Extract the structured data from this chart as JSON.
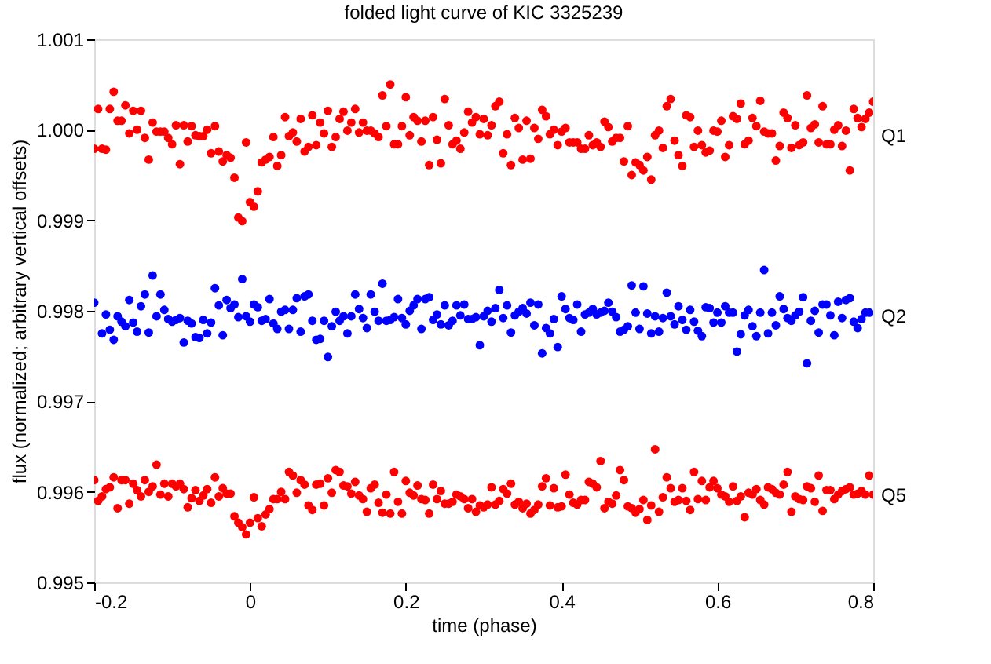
{
  "chart_data": {
    "type": "scatter",
    "title": "folded light curve of KIC 3325239",
    "xlabel": "time (phase)",
    "ylabel": "flux (normalized; arbitrary vertical offsets)",
    "xlim": [
      -0.2,
      0.8
    ],
    "xticks": [
      -0.2,
      0,
      0.2,
      0.4,
      0.6,
      0.8
    ],
    "ylim": [
      0.995,
      1.001
    ],
    "yticks": [
      0.995,
      0.996,
      0.997,
      0.998,
      0.999,
      {
        "value": 1.0,
        "label": "1.000"
      },
      1.001
    ],
    "grid": false,
    "legend": false,
    "marker": "circle",
    "x": [
      -0.2,
      -0.195,
      -0.19,
      -0.185,
      -0.18,
      -0.175,
      -0.17,
      -0.165,
      -0.16,
      -0.155,
      -0.15,
      -0.145,
      -0.14,
      -0.135,
      -0.13,
      -0.125,
      -0.12,
      -0.115,
      -0.11,
      -0.105,
      -0.1,
      -0.095,
      -0.09,
      -0.085,
      -0.08,
      -0.075,
      -0.07,
      -0.065,
      -0.06,
      -0.055,
      -0.05,
      -0.045,
      -0.04,
      -0.035,
      -0.03,
      -0.025,
      -0.02,
      -0.015,
      -0.01,
      -0.005,
      0,
      0.005,
      0.01,
      0.015,
      0.02,
      0.025,
      0.03,
      0.035,
      0.04,
      0.045,
      0.05,
      0.055,
      0.06,
      0.065,
      0.07,
      0.075,
      0.08,
      0.085,
      0.09,
      0.095,
      0.1,
      0.105,
      0.11,
      0.115,
      0.12,
      0.125,
      0.13,
      0.135,
      0.14,
      0.145,
      0.15,
      0.155,
      0.16,
      0.165,
      0.17,
      0.175,
      0.18,
      0.185,
      0.19,
      0.195,
      0.2,
      0.205,
      0.21,
      0.215,
      0.22,
      0.225,
      0.23,
      0.235,
      0.24,
      0.245,
      0.25,
      0.255,
      0.26,
      0.265,
      0.27,
      0.275,
      0.28,
      0.285,
      0.29,
      0.295,
      0.3,
      0.305,
      0.31,
      0.315,
      0.32,
      0.325,
      0.33,
      0.335,
      0.34,
      0.345,
      0.35,
      0.355,
      0.36,
      0.365,
      0.37,
      0.375,
      0.38,
      0.385,
      0.39,
      0.395,
      0.4,
      0.405,
      0.41,
      0.415,
      0.42,
      0.425,
      0.43,
      0.435,
      0.44,
      0.445,
      0.45,
      0.455,
      0.46,
      0.465,
      0.47,
      0.475,
      0.48,
      0.485,
      0.49,
      0.495,
      0.5,
      0.505,
      0.51,
      0.515,
      0.52,
      0.525,
      0.53,
      0.535,
      0.54,
      0.545,
      0.55,
      0.555,
      0.56,
      0.565,
      0.57,
      0.575,
      0.58,
      0.585,
      0.59,
      0.595,
      0.6,
      0.605,
      0.61,
      0.615,
      0.62,
      0.625,
      0.63,
      0.635,
      0.64,
      0.645,
      0.65,
      0.655,
      0.66,
      0.665,
      0.67,
      0.675,
      0.68,
      0.685,
      0.69,
      0.695,
      0.7,
      0.705,
      0.71,
      0.715,
      0.72,
      0.725,
      0.73,
      0.735,
      0.74,
      0.745,
      0.75,
      0.755,
      0.76,
      0.765,
      0.77,
      0.775,
      0.78,
      0.785,
      0.79,
      0.795,
      0.8
    ],
    "series": [
      {
        "name": "Q1",
        "color": "#ff0000",
        "values": [
          0.99979,
          1.00023,
          0.99979,
          0.99978,
          1.00023,
          1.00042,
          1.0001,
          1.0001,
          1.00027,
          0.99996,
          1.00021,
          1.0,
          1.00021,
          0.99991,
          0.99967,
          1.00008,
          0.99998,
          0.99998,
          0.99998,
          0.99991,
          0.99984,
          1.00005,
          0.99962,
          1.00005,
          0.99987,
          1.00004,
          0.99994,
          0.99993,
          0.99993,
          1.0,
          0.99974,
          1.00004,
          0.99976,
          0.99965,
          0.99972,
          0.99969,
          0.99947,
          0.99903,
          0.99899,
          0.99986,
          0.9992,
          0.99915,
          0.99932,
          0.99964,
          0.99967,
          0.9997,
          0.99992,
          0.9996,
          0.99972,
          1.00014,
          0.99993,
          0.99997,
          0.99987,
          1.00012,
          0.99976,
          0.99981,
          1.00016,
          0.99983,
          1.00008,
          0.99996,
          1.00021,
          0.99981,
          0.99992,
          1.00012,
          1.0002,
          0.99999,
          1.00008,
          1.00023,
          0.99997,
          1.00008,
          0.99999,
          0.99999,
          0.99996,
          0.99992,
          1.00038,
          1.00004,
          1.0005,
          0.99984,
          0.99984,
          1.00004,
          1.00036,
          0.99994,
          1.00014,
          1.0001,
          0.99987,
          1.0001,
          0.99961,
          1.00014,
          0.99989,
          0.99963,
          1.00034,
          1.00005,
          0.99984,
          0.99988,
          0.99979,
          0.99997,
          1.0002,
          1.00008,
          1.00014,
          0.99995,
          1.00012,
          0.99994,
          1.00005,
          1.00026,
          1.00031,
          0.99974,
          0.99995,
          0.99961,
          1.00013,
          1.00002,
          0.99967,
          1.0001,
          0.99968,
          1.00002,
          0.9999,
          1.00022,
          1.00015,
          0.99995,
          1.0,
          0.99983,
          0.99998,
          1.00002,
          0.99986,
          0.99986,
          0.99986,
          0.99979,
          0.99979,
          0.99994,
          0.99983,
          0.99986,
          0.99981,
          1.00009,
          1.00003,
          0.99987,
          0.99991,
          0.99991,
          0.99965,
          1.00004,
          0.9995,
          0.99964,
          0.99961,
          0.99955,
          0.9997,
          0.99945,
          0.99994,
          0.99999,
          0.9998,
          1.00026,
          1.00034,
          0.99988,
          0.99972,
          0.9996,
          1.00016,
          1.00014,
          0.99981,
          0.99999,
          0.99983,
          0.99975,
          0.99977,
          0.99999,
          0.99998,
          1.0001,
          0.9997,
          0.99983,
          1.00015,
          1.00012,
          1.00029,
          0.99984,
          0.99988,
          1.00013,
          1.00004,
          1.00032,
          0.99998,
          0.99996,
          0.99996,
          0.99966,
          0.99982,
          1.00019,
          1.00013,
          0.9998,
          1.00005,
          0.99983,
          0.99986,
          1.00038,
          1.00002,
          1.00006,
          0.99986,
          1.00026,
          0.99984,
          0.99984,
          1.0,
          1.00005,
          0.99982,
          0.99999,
          0.99955,
          1.00023,
          1.00013,
          1.00003,
          1.00012,
          1.00019,
          1.00031
        ]
      },
      {
        "name": "Q2",
        "color": "#0000ff",
        "x": [
          -0.2,
          -0.19,
          -0.185,
          -0.18,
          -0.175,
          -0.17,
          -0.165,
          -0.16,
          -0.155,
          -0.15,
          -0.145,
          -0.14,
          -0.135,
          -0.13,
          -0.125,
          -0.12,
          -0.115,
          -0.11,
          -0.105,
          -0.1,
          -0.095,
          -0.09,
          -0.085,
          -0.08,
          -0.075,
          -0.07,
          -0.065,
          -0.06,
          -0.055,
          -0.05,
          -0.045,
          -0.04,
          -0.035,
          -0.03,
          -0.025,
          -0.02,
          -0.015,
          -0.01,
          -0.005,
          0,
          0.005,
          0.01,
          0.015,
          0.02,
          0.025,
          0.03,
          0.035,
          0.04,
          0.045,
          0.05,
          0.055,
          0.06,
          0.065,
          0.07,
          0.075,
          0.08,
          0.085,
          0.09,
          0.095,
          0.1,
          0.105,
          0.11,
          0.115,
          0.12,
          0.125,
          0.13,
          0.135,
          0.14,
          0.145,
          0.15,
          0.155,
          0.16,
          0.165,
          0.17,
          0.175,
          0.18,
          0.185,
          0.19,
          0.195,
          0.2,
          0.205,
          0.21,
          0.215,
          0.22,
          0.225,
          0.23,
          0.235,
          0.24,
          0.245,
          0.25,
          0.255,
          0.26,
          0.265,
          0.27,
          0.275,
          0.28,
          0.285,
          0.29,
          0.295,
          0.3,
          0.305,
          0.31,
          0.315,
          0.32,
          0.325,
          0.33,
          0.335,
          0.34,
          0.345,
          0.35,
          0.355,
          0.36,
          0.365,
          0.37,
          0.375,
          0.38,
          0.385,
          0.39,
          0.395,
          0.4,
          0.405,
          0.41,
          0.415,
          0.42,
          0.425,
          0.43,
          0.435,
          0.44,
          0.445,
          0.45,
          0.455,
          0.46,
          0.465,
          0.47,
          0.475,
          0.48,
          0.485,
          0.49,
          0.495,
          0.5,
          0.505,
          0.51,
          0.515,
          0.52,
          0.525,
          0.53,
          0.535,
          0.54,
          0.545,
          0.55,
          0.555,
          0.56,
          0.565,
          0.57,
          0.575,
          0.58,
          0.585,
          0.59,
          0.595,
          0.6,
          0.605,
          0.61,
          0.615,
          0.62,
          0.625,
          0.63,
          0.635,
          0.64,
          0.645,
          0.65,
          0.655,
          0.66,
          0.665,
          0.67,
          0.675,
          0.68,
          0.685,
          0.69,
          0.695,
          0.7,
          0.705,
          0.71,
          0.715,
          0.72,
          0.725,
          0.73,
          0.735,
          0.74,
          0.745,
          0.75,
          0.755,
          0.76,
          0.765,
          0.77,
          0.775,
          0.78,
          0.785,
          0.79,
          0.795
        ],
        "values": [
          0.99809,
          0.99775,
          0.99796,
          0.99779,
          0.99768,
          0.99794,
          0.99788,
          0.99783,
          0.99812,
          0.99787,
          0.99777,
          0.99805,
          0.99818,
          0.99776,
          0.99839,
          0.99794,
          0.99818,
          0.99801,
          0.99791,
          0.99788,
          0.9979,
          0.99792,
          0.99765,
          0.99789,
          0.99786,
          0.99771,
          0.9977,
          0.9979,
          0.99775,
          0.99787,
          0.99825,
          0.99806,
          0.99773,
          0.99812,
          0.99803,
          0.99807,
          0.99793,
          0.99835,
          0.99794,
          0.99788,
          0.99807,
          0.99804,
          0.99789,
          0.99791,
          0.99813,
          0.99786,
          0.9978,
          0.99799,
          0.99801,
          0.9978,
          0.99801,
          0.99814,
          0.99777,
          0.99816,
          0.99818,
          0.99789,
          0.99768,
          0.99769,
          0.99789,
          0.99749,
          0.99783,
          0.99799,
          0.99789,
          0.99794,
          0.99775,
          0.99794,
          0.99818,
          0.99802,
          0.99792,
          0.99781,
          0.99818,
          0.99799,
          0.99789,
          0.9983,
          0.99789,
          0.9979,
          0.99793,
          0.99813,
          0.99792,
          0.99785,
          0.998,
          0.99806,
          0.99813,
          0.9978,
          0.99813,
          0.99815,
          0.9979,
          0.99796,
          0.99785,
          0.99806,
          0.99784,
          0.99789,
          0.99806,
          0.99795,
          0.99807,
          0.99791,
          0.99791,
          0.99793,
          0.99762,
          0.99794,
          0.998,
          0.99788,
          0.99803,
          0.99823,
          0.99792,
          0.99806,
          0.99776,
          0.99795,
          0.99799,
          0.99803,
          0.99797,
          0.99809,
          0.99784,
          0.99807,
          0.99753,
          0.99781,
          0.99775,
          0.99791,
          0.9976,
          0.99816,
          0.99802,
          0.99792,
          0.9979,
          0.99807,
          0.99777,
          0.99796,
          0.99798,
          0.99802,
          0.99796,
          0.99798,
          0.998,
          0.99809,
          0.99799,
          0.99793,
          0.99777,
          0.99779,
          0.99783,
          0.99828,
          0.99798,
          0.9978,
          0.99827,
          0.99797,
          0.99775,
          0.99794,
          0.99777,
          0.99792,
          0.9982,
          0.99794,
          0.99785,
          0.99805,
          0.9979,
          0.99779,
          0.99801,
          0.99788,
          0.99778,
          0.99772,
          0.99804,
          0.99803,
          0.99787,
          0.99798,
          0.99787,
          0.99805,
          0.99798,
          0.99798,
          0.99755,
          0.99774,
          0.99795,
          0.99801,
          0.99783,
          0.99772,
          0.99798,
          0.99845,
          0.99775,
          0.99798,
          0.99784,
          0.99816,
          0.99802,
          0.99792,
          0.99789,
          0.99795,
          0.99799,
          0.99815,
          0.99742,
          0.99789,
          0.998,
          0.99776,
          0.99807,
          0.99807,
          0.99795,
          0.99773,
          0.9981,
          0.99792,
          0.99812,
          0.99814,
          0.99788,
          0.99781,
          0.99791,
          0.99798,
          0.99798
        ]
      },
      {
        "name": "Q5",
        "color": "#ff0000",
        "values": [
          0.99613,
          0.9959,
          0.99595,
          0.99603,
          0.99605,
          0.99616,
          0.99582,
          0.99613,
          0.99613,
          0.99587,
          0.99609,
          0.99602,
          0.99595,
          0.99613,
          0.996,
          0.99606,
          0.9963,
          0.99597,
          0.99609,
          0.99595,
          0.99609,
          0.99606,
          0.99609,
          0.99603,
          0.99583,
          0.99593,
          0.99602,
          0.9959,
          0.99596,
          0.99603,
          0.99588,
          0.99616,
          0.99595,
          0.99604,
          0.99598,
          0.99598,
          0.99573,
          0.99566,
          0.99561,
          0.99553,
          0.99566,
          0.99594,
          0.99571,
          0.99562,
          0.99575,
          0.99581,
          0.99592,
          0.99592,
          0.996,
          0.99592,
          0.99622,
          0.99618,
          0.99599,
          0.99613,
          0.99608,
          0.99585,
          0.9958,
          0.99608,
          0.99609,
          0.99585,
          0.99615,
          0.99599,
          0.99624,
          0.99622,
          0.99607,
          0.99606,
          0.99598,
          0.99611,
          0.99596,
          0.99592,
          0.99578,
          0.99604,
          0.99608,
          0.99588,
          0.99577,
          0.99597,
          0.99576,
          0.99622,
          0.99589,
          0.99576,
          0.99612,
          0.99599,
          0.99596,
          0.99607,
          0.99592,
          0.99591,
          0.99576,
          0.99608,
          0.99592,
          0.99601,
          0.99587,
          0.99587,
          0.99589,
          0.99597,
          0.99595,
          0.99592,
          0.99582,
          0.99592,
          0.99578,
          0.99585,
          0.99583,
          0.99586,
          0.99605,
          0.99586,
          0.9959,
          0.99603,
          0.99598,
          0.99609,
          0.99586,
          0.99589,
          0.99582,
          0.99587,
          0.99576,
          0.9958,
          0.99586,
          0.99606,
          0.99615,
          0.99585,
          0.99604,
          0.99583,
          0.99584,
          0.99619,
          0.99597,
          0.99588,
          0.99586,
          0.99591,
          0.99591,
          0.99611,
          0.99609,
          0.99605,
          0.99634,
          0.99582,
          0.99589,
          0.99587,
          0.99596,
          0.99624,
          0.99613,
          0.99584,
          0.99582,
          0.99577,
          0.99581,
          0.99591,
          0.99569,
          0.99585,
          0.99647,
          0.99578,
          0.99594,
          0.99616,
          0.99604,
          0.99589,
          0.99591,
          0.99604,
          0.9959,
          0.9958,
          0.99622,
          0.99592,
          0.99612,
          0.99591,
          0.99605,
          0.99612,
          0.99604,
          0.99597,
          0.99595,
          0.99589,
          0.99606,
          0.9959,
          0.99595,
          0.99572,
          0.99599,
          0.99597,
          0.99603,
          0.99591,
          0.99586,
          0.99605,
          0.99603,
          0.99599,
          0.99597,
          0.99608,
          0.99622,
          0.99578,
          0.99595,
          0.99592,
          0.99591,
          0.99606,
          0.99604,
          0.99589,
          0.99618,
          0.99579,
          0.99602,
          0.99602,
          0.99592,
          0.99597,
          0.99601,
          0.99603,
          0.99605,
          0.99597,
          0.99598,
          0.99601,
          0.99597,
          0.99618,
          0.99597
        ]
      }
    ]
  }
}
